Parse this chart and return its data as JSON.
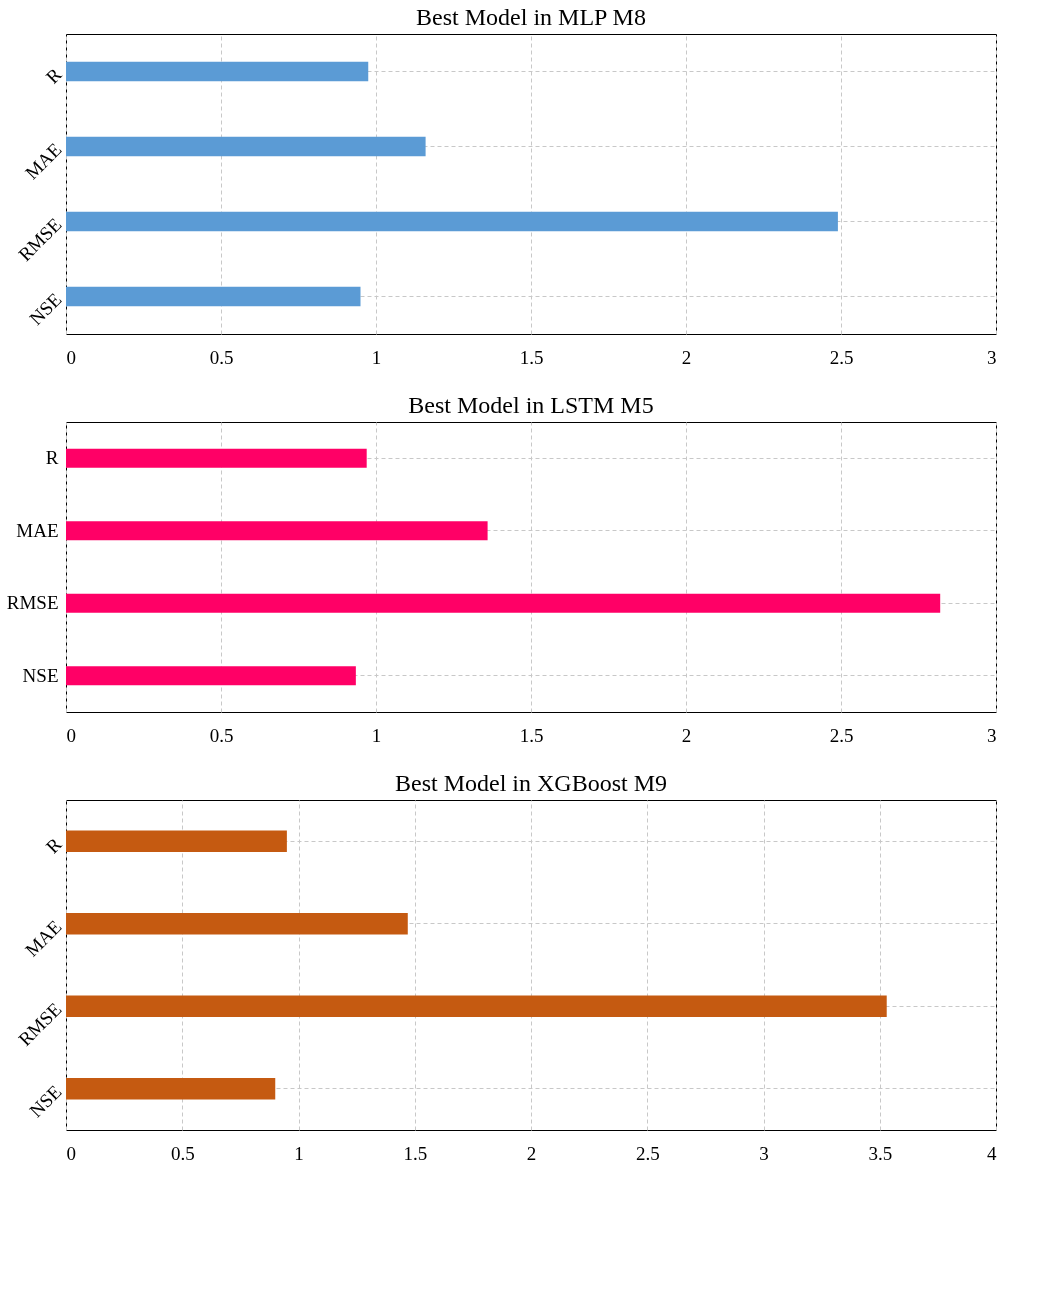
{
  "chart_data": [
    {
      "type": "bar",
      "orientation": "horizontal",
      "title": "Best Model in MLP M8",
      "categories": [
        "R",
        "MAE",
        "RMSE",
        "NSE"
      ],
      "values": [
        0.975,
        1.16,
        2.49,
        0.95
      ],
      "color": "#5b9bd5",
      "xlim": [
        0,
        3
      ],
      "xticks": [
        0,
        0.5,
        1,
        1.5,
        2,
        2.5,
        3
      ],
      "grid": true
    },
    {
      "type": "bar",
      "orientation": "horizontal",
      "title": "Best Model in LSTM M5",
      "categories": [
        "R",
        "MAE",
        "RMSE",
        "NSE"
      ],
      "values": [
        0.97,
        1.36,
        2.82,
        0.935
      ],
      "color": "#ff0066",
      "xlim": [
        0,
        3
      ],
      "xticks": [
        0,
        0.5,
        1,
        1.5,
        2,
        2.5,
        3
      ],
      "grid": true
    },
    {
      "type": "bar",
      "orientation": "horizontal",
      "title": "Best Model in XGBoost M9",
      "categories": [
        "R",
        "MAE",
        "RMSE",
        "NSE"
      ],
      "values": [
        0.95,
        1.47,
        3.53,
        0.9
      ],
      "color": "#c55a11",
      "xlim": [
        0,
        4
      ],
      "xticks": [
        0,
        0.5,
        1,
        1.5,
        2,
        2.5,
        3,
        3.5,
        4
      ],
      "grid": true
    }
  ]
}
